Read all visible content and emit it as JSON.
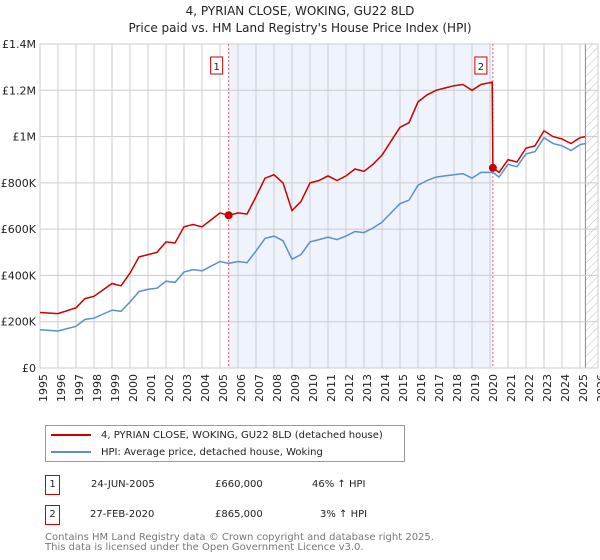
{
  "title": "4, PYRIAN CLOSE, WOKING, GU22 8LD",
  "subtitle": "Price paid vs. HM Land Registry's House Price Index (HPI)",
  "chart_data": {
    "type": "line",
    "title": "4, PYRIAN CLOSE, WOKING, GU22 8LD — Price paid vs. HM Land Registry's House Price Index (HPI)",
    "xlim": [
      1995,
      2026
    ],
    "ylim": [
      0,
      1400000
    ],
    "x_ticks": [
      "1995",
      "1996",
      "1997",
      "1998",
      "1999",
      "2000",
      "2001",
      "2002",
      "2003",
      "2004",
      "2005",
      "2006",
      "2007",
      "2008",
      "2009",
      "2010",
      "2011",
      "2012",
      "2013",
      "2014",
      "2015",
      "2016",
      "2017",
      "2018",
      "2019",
      "2020",
      "2021",
      "2022",
      "2023",
      "2024",
      "2025",
      "2026"
    ],
    "y_ticks": [
      {
        "v": 0,
        "label": "£0"
      },
      {
        "v": 200000,
        "label": "£200K"
      },
      {
        "v": 400000,
        "label": "£400K"
      },
      {
        "v": 600000,
        "label": "£600K"
      },
      {
        "v": 800000,
        "label": "£800K"
      },
      {
        "v": 1000000,
        "label": "£1M"
      },
      {
        "v": 1200000,
        "label": "£1.2M"
      },
      {
        "v": 1400000,
        "label": "£1.4M"
      }
    ],
    "grid": true,
    "shaded_range": [
      2005.48,
      2020.16
    ],
    "forecast_start": 2025.3,
    "series": [
      {
        "name": "4, PYRIAN CLOSE, WOKING, GU22 8LD (detached house)",
        "color": "#cc0000",
        "x": [
          1995,
          1996,
          1997,
          1997.5,
          1998,
          1999,
          1999.5,
          2000,
          2000.5,
          2001,
          2001.5,
          2002,
          2002.5,
          2003,
          2003.5,
          2004,
          2004.5,
          2005,
          2005.48,
          2006,
          2006.5,
          2007,
          2007.5,
          2008,
          2008.5,
          2009,
          2009.5,
          2010,
          2010.5,
          2011,
          2011.5,
          2012,
          2012.5,
          2013,
          2013.5,
          2014,
          2014.5,
          2015,
          2015.5,
          2016,
          2016.5,
          2017,
          2017.5,
          2018,
          2018.5,
          2019,
          2019.5,
          2020.12,
          2020.16,
          2020.5,
          2021,
          2021.5,
          2022,
          2022.5,
          2023,
          2023.5,
          2024,
          2024.5,
          2025,
          2025.3
        ],
        "values": [
          240000,
          235000,
          260000,
          300000,
          310000,
          365000,
          355000,
          410000,
          480000,
          490000,
          500000,
          545000,
          540000,
          610000,
          620000,
          610000,
          640000,
          670000,
          660000,
          670000,
          665000,
          740000,
          820000,
          835000,
          800000,
          680000,
          720000,
          800000,
          810000,
          830000,
          810000,
          830000,
          860000,
          850000,
          880000,
          920000,
          980000,
          1040000,
          1060000,
          1150000,
          1180000,
          1200000,
          1210000,
          1220000,
          1225000,
          1200000,
          1225000,
          1235000,
          865000,
          845000,
          900000,
          890000,
          950000,
          960000,
          1025000,
          1000000,
          990000,
          970000,
          995000,
          1000000
        ]
      },
      {
        "name": "HPI: Average price, detached house, Woking",
        "color": "#5b8fd0",
        "x": [
          1995,
          1996,
          1997,
          1997.5,
          1998,
          1999,
          1999.5,
          2000,
          2000.5,
          2001,
          2001.5,
          2002,
          2002.5,
          2003,
          2003.5,
          2004,
          2004.5,
          2005,
          2005.48,
          2006,
          2006.5,
          2007,
          2007.5,
          2008,
          2008.5,
          2009,
          2009.5,
          2010,
          2010.5,
          2011,
          2011.5,
          2012,
          2012.5,
          2013,
          2013.5,
          2014,
          2014.5,
          2015,
          2015.5,
          2016,
          2016.5,
          2017,
          2017.5,
          2018,
          2018.5,
          2019,
          2019.5,
          2020.16,
          2020.5,
          2021,
          2021.5,
          2022,
          2022.5,
          2023,
          2023.5,
          2024,
          2024.5,
          2025,
          2025.3
        ],
        "values": [
          165000,
          160000,
          180000,
          210000,
          215000,
          250000,
          245000,
          285000,
          330000,
          340000,
          345000,
          375000,
          370000,
          415000,
          425000,
          420000,
          440000,
          460000,
          452000,
          460000,
          455000,
          505000,
          560000,
          570000,
          550000,
          470000,
          490000,
          545000,
          555000,
          565000,
          555000,
          570000,
          590000,
          585000,
          605000,
          630000,
          670000,
          710000,
          725000,
          790000,
          810000,
          825000,
          830000,
          835000,
          840000,
          820000,
          845000,
          845000,
          825000,
          880000,
          870000,
          925000,
          935000,
          995000,
          970000,
          960000,
          940000,
          965000,
          970000
        ]
      }
    ],
    "annotations": [
      {
        "label": "1",
        "x": 2005.48,
        "y": 660000
      },
      {
        "label": "2",
        "x": 2020.16,
        "y": 865000
      }
    ]
  },
  "legend": [
    {
      "label": "4, PYRIAN CLOSE, WOKING, GU22 8LD (detached house)",
      "color": "#cc0000"
    },
    {
      "label": "HPI: Average price, detached house, Woking",
      "color": "#5b8fd0"
    }
  ],
  "transactions": [
    {
      "num": "1",
      "date": "24-JUN-2005",
      "price": "£660,000",
      "hpi": "46% ↑ HPI"
    },
    {
      "num": "2",
      "date": "27-FEB-2020",
      "price": "£865,000",
      "hpi": "3% ↑ HPI"
    }
  ],
  "footer": [
    "Contains HM Land Registry data © Crown copyright and database right 2025.",
    "This data is licensed under the Open Government Licence v3.0."
  ]
}
